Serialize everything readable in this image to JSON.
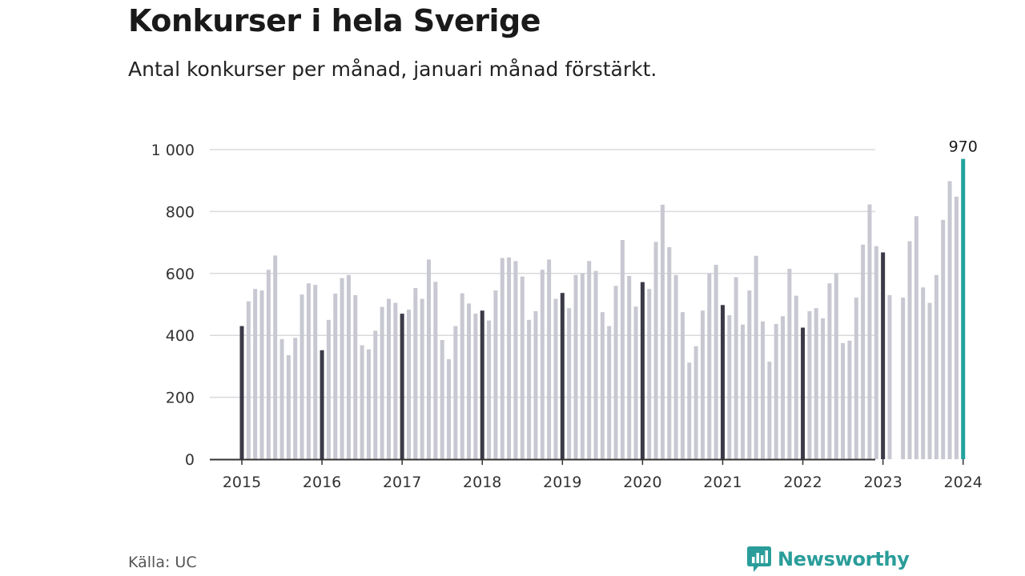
{
  "title": "Konkurser i hela Sverige",
  "subtitle": "Antal konkurser per månad, januari månad förstärkt.",
  "source": "Källa: UC",
  "brand": "Newsworthy",
  "colors": {
    "regular_bar": "#c8c8d2",
    "january_bar": "#3b3a47",
    "latest_bar": "#20a39e",
    "grid": "#d9d9de",
    "axis": "#333333",
    "brand": "#2a9d9a"
  },
  "chart_data": {
    "type": "bar",
    "title": "Konkurser i hela Sverige",
    "subtitle": "Antal konkurser per månad, januari månad förstärkt.",
    "xlabel": "",
    "ylabel": "",
    "ylim": [
      0,
      1000
    ],
    "yticks": [
      0,
      200,
      400,
      600,
      800,
      1000
    ],
    "ytick_labels": [
      "0",
      "200",
      "400",
      "600",
      "800",
      "1 000"
    ],
    "xtick_labels": [
      "2015",
      "2016",
      "2017",
      "2018",
      "2019",
      "2020",
      "2021",
      "2022",
      "2023",
      "2024"
    ],
    "grid": true,
    "highlight_label": "970",
    "x_start": "2015-01",
    "values": [
      430,
      510,
      550,
      545,
      612,
      658,
      388,
      336,
      392,
      532,
      568,
      563,
      352,
      450,
      535,
      585,
      595,
      530,
      368,
      355,
      415,
      492,
      518,
      505,
      470,
      483,
      553,
      518,
      645,
      573,
      385,
      323,
      430,
      536,
      503,
      470,
      480,
      448,
      545,
      650,
      652,
      640,
      590,
      450,
      478,
      612,
      645,
      518,
      537,
      488,
      595,
      600,
      640,
      608,
      475,
      430,
      560,
      708,
      592,
      493,
      572,
      550,
      702,
      822,
      685,
      595,
      475,
      312,
      365,
      480,
      600,
      628,
      498,
      465,
      588,
      435,
      545,
      657,
      445,
      315,
      437,
      462,
      615,
      528,
      425,
      478,
      488,
      455,
      568,
      600,
      375,
      383,
      522,
      693,
      823,
      688,
      668,
      530,
      null,
      522,
      704,
      785,
      555,
      505,
      595,
      773,
      898,
      848,
      970
    ]
  }
}
